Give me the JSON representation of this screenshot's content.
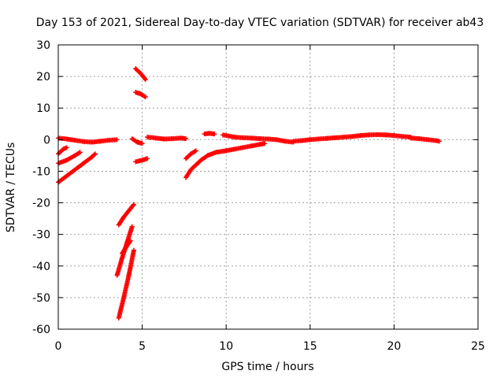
{
  "chart_data": {
    "type": "scatter",
    "title": "Day 153 of 2021, Sidereal Day-to-day VTEC variation (SDTVAR) for receiver ab43",
    "xlabel": "GPS time / hours",
    "ylabel": "SDTVAR / TECUs",
    "xlim": [
      0,
      25
    ],
    "ylim": [
      -60,
      30
    ],
    "xticks": [
      "0",
      "5",
      "10",
      "15",
      "20",
      "25"
    ],
    "yticks": [
      "30",
      "20",
      "10",
      "0",
      "-10",
      "-20",
      "-30",
      "-40",
      "-50",
      "-60"
    ],
    "grid": true,
    "marker": "plus",
    "color": "#ff0000",
    "segments": [
      {
        "x": [
          0.0,
          0.5,
          1.0,
          1.5,
          2.0,
          2.5,
          3.0,
          3.5
        ],
        "y": [
          0.5,
          0.2,
          -0.2,
          -0.6,
          -0.8,
          -0.5,
          -0.2,
          0.0
        ]
      },
      {
        "x": [
          0.0,
          0.3,
          0.5
        ],
        "y": [
          -4.5,
          -3.0,
          -2.5
        ]
      },
      {
        "x": [
          0.0,
          0.5,
          1.0,
          1.3
        ],
        "y": [
          -7.5,
          -6.5,
          -5.0,
          -4.0
        ]
      },
      {
        "x": [
          0.0,
          0.5,
          1.0,
          1.5,
          2.0,
          2.2
        ],
        "y": [
          -13.5,
          -11.5,
          -9.5,
          -7.5,
          -5.5,
          -4.5
        ]
      },
      {
        "x": [
          3.6,
          3.9,
          4.2,
          4.5
        ],
        "y": [
          -27,
          -24.5,
          -22.5,
          -20.5
        ]
      },
      {
        "x": [
          3.5,
          3.8,
          4.1,
          4.4
        ],
        "y": [
          -43,
          -37.5,
          -32.5,
          -27.5
        ]
      },
      {
        "x": [
          3.6,
          3.9,
          4.2,
          4.5
        ],
        "y": [
          -56.5,
          -50,
          -43,
          -35
        ]
      },
      {
        "x": [
          3.8,
          4.3
        ],
        "y": [
          -36,
          -32
        ]
      },
      {
        "x": [
          4.6,
          4.9,
          5.2
        ],
        "y": [
          22.5,
          21,
          19
        ]
      },
      {
        "x": [
          4.6,
          4.9,
          5.2
        ],
        "y": [
          15,
          14.5,
          13.5
        ]
      },
      {
        "x": [
          4.6,
          5.0,
          5.3
        ],
        "y": [
          -7,
          -6.5,
          -6
        ]
      },
      {
        "x": [
          4.4,
          4.7,
          5.0
        ],
        "y": [
          0.3,
          -0.8,
          -1.2
        ]
      },
      {
        "x": [
          5.3,
          5.8,
          6.3,
          6.8,
          7.3,
          7.6
        ],
        "y": [
          0.8,
          0.5,
          0.2,
          0.3,
          0.5,
          0.3
        ]
      },
      {
        "x": [
          7.6,
          7.9,
          8.2
        ],
        "y": [
          -6,
          -4.5,
          -3.5
        ]
      },
      {
        "x": [
          7.6,
          7.9,
          8.2,
          8.5,
          8.9,
          9.4,
          10.0,
          10.5,
          11.0,
          11.5,
          12.0,
          12.3
        ],
        "y": [
          -12,
          -9.5,
          -8.0,
          -6.5,
          -5.0,
          -4.0,
          -3.5,
          -3.0,
          -2.5,
          -2.0,
          -1.5,
          -1.2
        ]
      },
      {
        "x": [
          8.7,
          9.0,
          9.3
        ],
        "y": [
          1.8,
          2.0,
          1.8
        ]
      },
      {
        "x": [
          9.8,
          10.5,
          11.0,
          11.5,
          12.0,
          12.5,
          13.0,
          13.5,
          14.0
        ],
        "y": [
          1.5,
          0.8,
          0.6,
          0.5,
          0.3,
          0.2,
          0.0,
          -0.5,
          -0.8
        ]
      },
      {
        "x": [
          14.0,
          14.5,
          15.0,
          15.5,
          16.0,
          16.5,
          17.0,
          17.5,
          18.0,
          18.5,
          19.0,
          19.5,
          20.0,
          20.5,
          21.0
        ],
        "y": [
          -0.5,
          -0.3,
          0.0,
          0.2,
          0.4,
          0.6,
          0.8,
          1.0,
          1.3,
          1.5,
          1.6,
          1.5,
          1.3,
          1.0,
          0.8
        ]
      },
      {
        "x": [
          21.0,
          21.5,
          22.0,
          22.5,
          22.7
        ],
        "y": [
          0.5,
          0.3,
          0.0,
          -0.3,
          -0.5
        ]
      }
    ]
  }
}
